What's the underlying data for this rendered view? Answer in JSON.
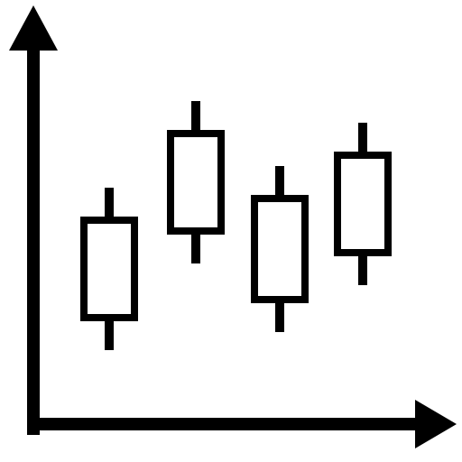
{
  "icon": {
    "name": "candlestick-chart-icon",
    "foreground": "#000000",
    "background": "#ffffff"
  },
  "candles": [
    {
      "name": "candle-1",
      "open": 2.4,
      "close": 5.3,
      "low": 1.6,
      "high": 6.1
    },
    {
      "name": "candle-2",
      "open": 4.8,
      "close": 7.7,
      "low": 4.0,
      "high": 8.5
    },
    {
      "name": "candle-3",
      "open": 2.9,
      "close": 5.9,
      "low": 2.1,
      "high": 6.7
    },
    {
      "name": "candle-4",
      "open": 4.2,
      "close": 7.1,
      "low": 3.4,
      "high": 7.9
    }
  ]
}
